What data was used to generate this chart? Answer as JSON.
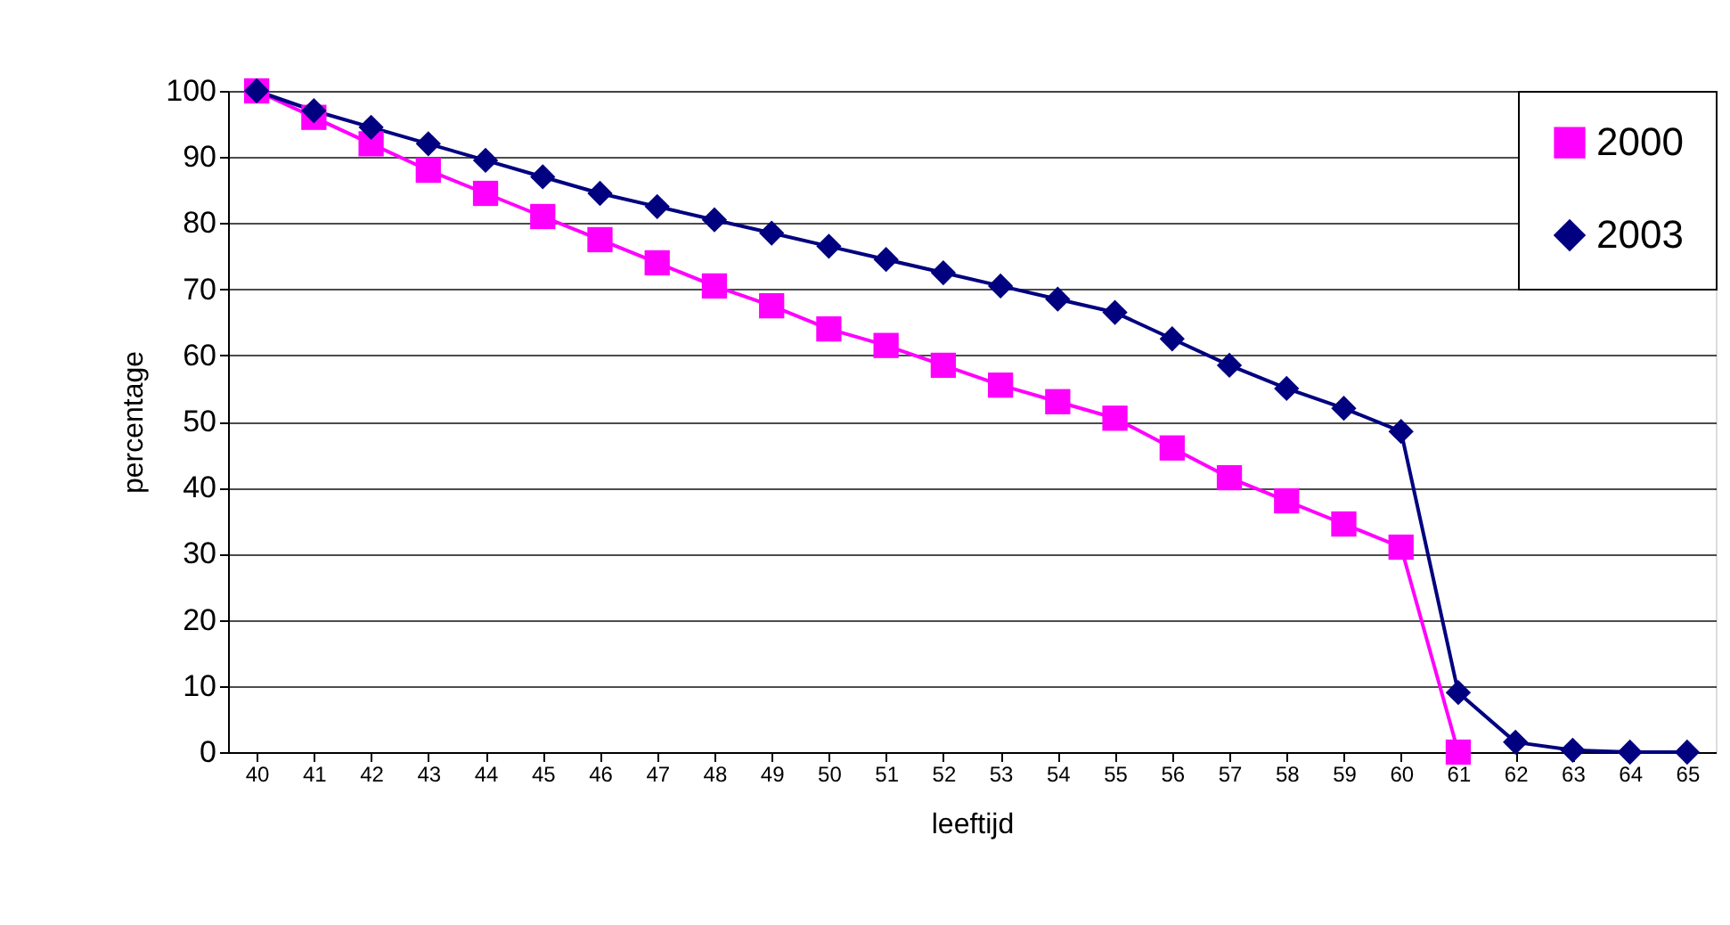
{
  "chart_data": {
    "type": "line",
    "xlabel": "leeftijd",
    "ylabel": "percentage",
    "categories": [
      "40",
      "41",
      "42",
      "43",
      "44",
      "45",
      "46",
      "47",
      "48",
      "49",
      "50",
      "51",
      "52",
      "53",
      "54",
      "55",
      "56",
      "57",
      "58",
      "59",
      "60",
      "61",
      "62",
      "63",
      "64",
      "65"
    ],
    "series": [
      {
        "name": "2000",
        "color": "#ff00ff",
        "marker": "square",
        "values": [
          100,
          96,
          92,
          88,
          84.5,
          81,
          77.5,
          74,
          70.5,
          67.5,
          64,
          61.5,
          58.5,
          55.5,
          53,
          50.5,
          46,
          41.5,
          38,
          34.5,
          31,
          0,
          null,
          null,
          null,
          null
        ]
      },
      {
        "name": "2003",
        "color": "#000080",
        "marker": "diamond",
        "values": [
          100,
          97,
          94.5,
          92,
          89.5,
          87,
          84.5,
          82.5,
          80.5,
          78.5,
          76.5,
          74.5,
          72.5,
          70.5,
          68.5,
          66.5,
          62.5,
          58.5,
          55,
          52,
          48.5,
          9,
          1.5,
          0.3,
          0,
          0
        ]
      }
    ],
    "ylim": [
      0,
      100
    ],
    "yticks": [
      0,
      10,
      20,
      30,
      40,
      50,
      60,
      70,
      80,
      90,
      100
    ],
    "grid": "y",
    "legend": "top right",
    "line_style": "solid"
  }
}
